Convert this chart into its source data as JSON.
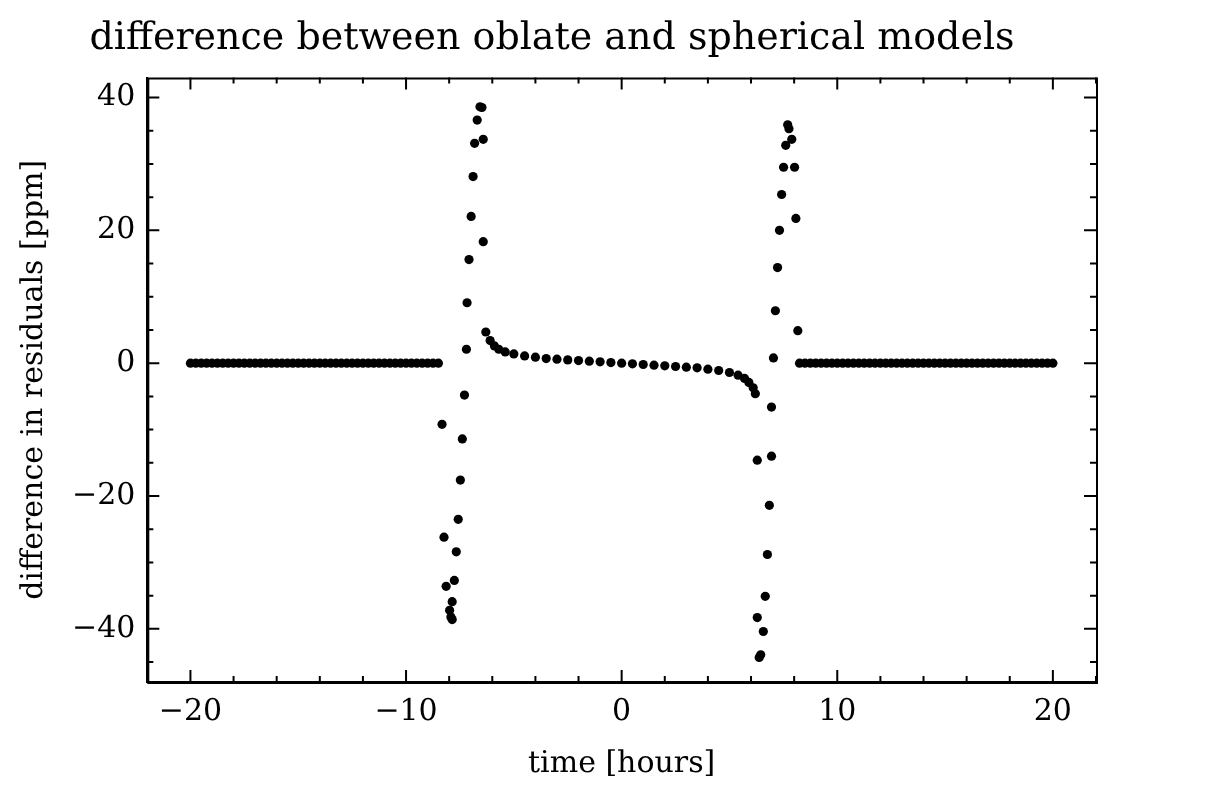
{
  "chart_data": {
    "type": "scatter",
    "title": "difference between oblate and spherical models",
    "xlabel": "time [hours]",
    "ylabel": "difference in residuals [ppm]",
    "xlim": [
      -22,
      22
    ],
    "ylim": [
      -48,
      43
    ],
    "xticks": [
      -20,
      -10,
      0,
      10,
      20
    ],
    "yticks": [
      -40,
      -20,
      0,
      20,
      40
    ],
    "marker": "circle",
    "series": [
      {
        "color": "#000000",
        "x": [
          -20,
          -19.75,
          -19.5,
          -19.25,
          -19,
          -18.75,
          -18.5,
          -18.25,
          -18,
          -17.75,
          -17.5,
          -17.25,
          -17,
          -16.75,
          -16.5,
          -16.25,
          -16,
          -15.75,
          -15.5,
          -15.25,
          -15,
          -14.75,
          -14.5,
          -14.25,
          -14,
          -13.75,
          -13.5,
          -13.25,
          -13,
          -12.75,
          -12.5,
          -12.25,
          -12,
          -11.75,
          -11.5,
          -11.25,
          -11,
          -10.75,
          -10.5,
          -10.25,
          -10,
          -9.75,
          -9.5,
          -9.25,
          -9,
          -8.75,
          -8.5,
          -6.57,
          -6.48,
          -6.7,
          -6.82,
          -6.42,
          -6.89,
          -6.98,
          -6.42,
          -7.08,
          -7.17,
          -7.2,
          -7.29,
          -8.33,
          -7.39,
          -7.48,
          -7.58,
          -8.24,
          -7.67,
          -7.76,
          -8.14,
          -7.86,
          -7.98,
          -7.92,
          -7.86,
          -6.3,
          -6.1,
          -5.9,
          -5.7,
          -5.4,
          -5,
          -4.5,
          -4,
          -3.5,
          -3,
          -2.5,
          -2,
          -1.5,
          -1,
          -0.5,
          0,
          0.5,
          1,
          1.5,
          2,
          2.5,
          3,
          3.5,
          4,
          4.5,
          5,
          5.4,
          5.7,
          5.9,
          6.1,
          6.2,
          7.7,
          7.76,
          7.89,
          7.61,
          7.51,
          8.02,
          7.42,
          8.08,
          7.32,
          7.23,
          7.13,
          8.17,
          7.04,
          6.95,
          6.29,
          6.95,
          6.85,
          6.76,
          6.66,
          6.29,
          6.57,
          6.45,
          6.38,
          8.25,
          8.5,
          8.75,
          9,
          9.25,
          9.5,
          9.75,
          10,
          10.25,
          10.5,
          10.75,
          11,
          11.25,
          11.5,
          11.75,
          12,
          12.25,
          12.5,
          12.75,
          13,
          13.25,
          13.5,
          13.75,
          14,
          14.25,
          14.5,
          14.75,
          15,
          15.25,
          15.5,
          15.75,
          16,
          16.25,
          16.5,
          16.75,
          17,
          17.25,
          17.5,
          17.75,
          18,
          18.25,
          18.5,
          18.75,
          19,
          19.25,
          19.5,
          19.75,
          20
        ],
        "values": [
          0,
          0,
          0,
          0,
          0,
          0,
          0,
          0,
          0,
          0,
          0,
          0,
          0,
          0,
          0,
          0,
          0,
          0,
          0,
          0,
          0,
          0,
          0,
          0,
          0,
          0,
          0,
          0,
          0,
          0,
          0,
          0,
          0,
          0,
          0,
          0,
          0,
          0,
          0,
          0,
          0,
          0,
          0,
          0,
          0,
          0,
          0,
          38.6,
          38.5,
          36.6,
          33.1,
          33.7,
          28.1,
          22.1,
          18.3,
          15.6,
          9.1,
          2.1,
          -4.8,
          -9.2,
          -11.4,
          -17.6,
          -23.5,
          -26.2,
          -28.4,
          -32.7,
          -33.6,
          -35.9,
          -37.2,
          -38.2,
          -38.6,
          4.7,
          3.4,
          2.6,
          2.1,
          1.7,
          1.4,
          1.1,
          0.9,
          0.7,
          0.6,
          0.5,
          0.4,
          0.3,
          0.2,
          0.1,
          0,
          -0.1,
          -0.2,
          -0.3,
          -0.4,
          -0.5,
          -0.6,
          -0.7,
          -0.9,
          -1.1,
          -1.4,
          -1.8,
          -2.3,
          -2.9,
          -3.7,
          -4.6,
          35.9,
          35.3,
          33.7,
          32.8,
          29.5,
          29.5,
          25.4,
          21.8,
          20,
          14.4,
          7.9,
          4.9,
          0.8,
          -6.6,
          -14.6,
          -14,
          -21.4,
          -28.8,
          -35.1,
          -38.3,
          -40.4,
          -43.9,
          -44.3,
          0,
          0,
          0,
          0,
          0,
          0,
          0,
          0,
          0,
          0,
          0,
          0,
          0,
          0,
          0,
          0,
          0,
          0,
          0,
          0,
          0,
          0,
          0,
          0,
          0,
          0,
          0,
          0,
          0,
          0,
          0,
          0,
          0,
          0,
          0,
          0,
          0,
          0,
          0,
          0,
          0,
          0,
          0,
          0,
          0,
          0,
          0,
          0
        ]
      }
    ]
  }
}
